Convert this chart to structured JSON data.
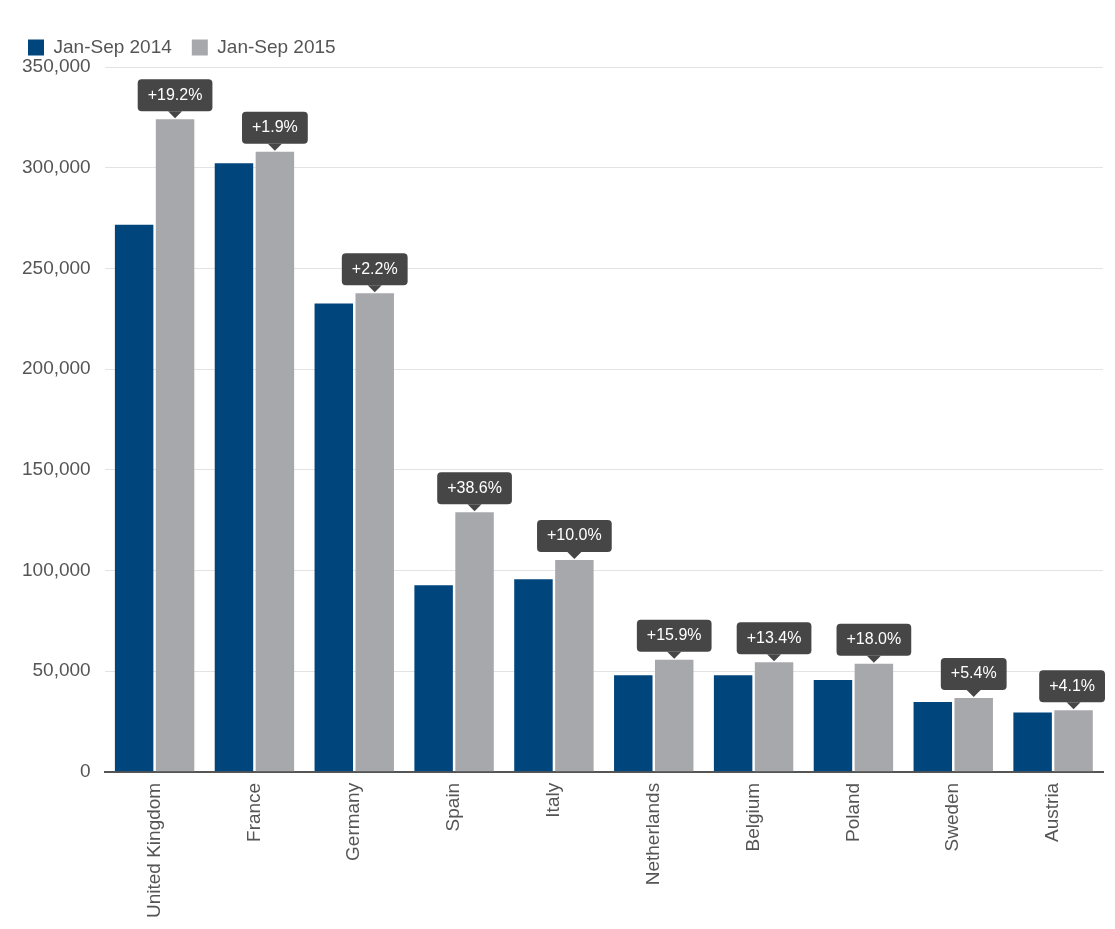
{
  "chart_data": {
    "type": "bar",
    "categories": [
      "United Kingdom",
      "France",
      "Germany",
      "Spain",
      "Italy",
      "Netherlands",
      "Belgium",
      "Poland",
      "Sweden",
      "Austria"
    ],
    "series": [
      {
        "name": "Jan-Sep 2014",
        "color": "#00457c",
        "values": [
          271700,
          302200,
          232500,
          92700,
          95600,
          48000,
          48000,
          45600,
          34700,
          29400
        ]
      },
      {
        "name": "Jan-Sep 2015",
        "color": "#a7a8ab",
        "values": [
          324000,
          307900,
          237600,
          128900,
          105200,
          55600,
          54400,
          53600,
          36700,
          30600
        ]
      }
    ],
    "ylim": [
      0,
      350000
    ],
    "yticks": [
      {
        "value": 0,
        "label": "0"
      },
      {
        "value": 50000,
        "label": "50,000"
      },
      {
        "value": 100000,
        "label": "100,000"
      },
      {
        "value": 150000,
        "label": "150,000"
      },
      {
        "value": 200000,
        "label": "200,000"
      },
      {
        "value": 250000,
        "label": "250,000"
      },
      {
        "value": 300000,
        "label": "300,000"
      },
      {
        "value": 350000,
        "label": "350,000"
      }
    ],
    "grid": "y",
    "legend": "top left",
    "annotations": [
      {
        "text": "+19.2%",
        "x": "United Kingdom",
        "y": 324000
      },
      {
        "text": "+1.9%",
        "x": "France",
        "y": 307900
      },
      {
        "text": "+2.2%",
        "x": "Germany",
        "y": 237600
      },
      {
        "text": "+38.6%",
        "x": "Spain",
        "y": 128900
      },
      {
        "text": "+10.0%",
        "x": "Italy",
        "y": 105200
      },
      {
        "text": "+15.9%",
        "x": "Netherlands",
        "y": 55600
      },
      {
        "text": "+13.4%",
        "x": "Belgium",
        "y": 54400
      },
      {
        "text": "+18.0%",
        "x": "Poland",
        "y": 53600
      },
      {
        "text": "+5.4%",
        "x": "Sweden",
        "y": 36700
      },
      {
        "text": "+4.1%",
        "x": "Austria",
        "y": 30600
      }
    ]
  }
}
